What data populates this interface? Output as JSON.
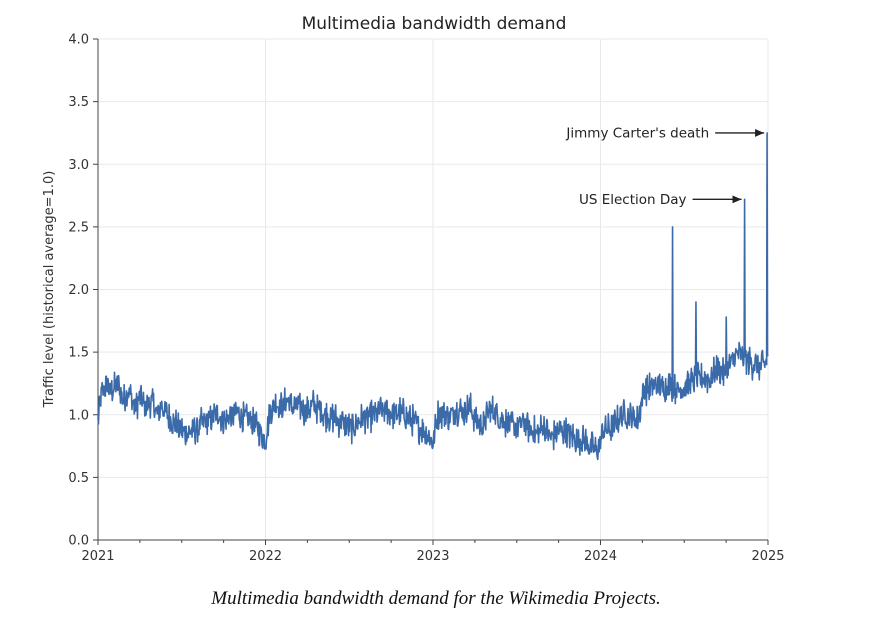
{
  "chart_data": {
    "type": "line",
    "title": "Multimedia bandwidth demand",
    "xlabel": "",
    "ylabel": "Traffic level (historical average=1.0)",
    "xlim": [
      2021,
      2025
    ],
    "ylim": [
      0,
      4
    ],
    "x_ticks": [
      "2021",
      "2022",
      "2023",
      "2024",
      "2025"
    ],
    "y_ticks": [
      "0.0",
      "0.5",
      "1.0",
      "1.5",
      "2.0",
      "2.5",
      "3.0",
      "3.5",
      "4.0"
    ],
    "grid": true,
    "line_color": "#3b6aa8",
    "series": [
      {
        "name": "Multimedia bandwidth demand",
        "points": [
          [
            2021.0,
            0.95
          ],
          [
            2021.02,
            1.15
          ],
          [
            2021.05,
            1.25
          ],
          [
            2021.08,
            1.18
          ],
          [
            2021.12,
            1.25
          ],
          [
            2021.15,
            1.1
          ],
          [
            2021.18,
            1.2
          ],
          [
            2021.22,
            1.05
          ],
          [
            2021.25,
            1.15
          ],
          [
            2021.28,
            1.05
          ],
          [
            2021.32,
            1.12
          ],
          [
            2021.35,
            1.0
          ],
          [
            2021.38,
            1.08
          ],
          [
            2021.42,
            0.98
          ],
          [
            2021.45,
            0.95
          ],
          [
            2021.48,
            0.9
          ],
          [
            2021.5,
            0.88
          ],
          [
            2021.53,
            0.85
          ],
          [
            2021.56,
            0.87
          ],
          [
            2021.6,
            0.9
          ],
          [
            2021.64,
            0.95
          ],
          [
            2021.68,
            0.98
          ],
          [
            2021.72,
            1.0
          ],
          [
            2021.76,
            0.95
          ],
          [
            2021.8,
            1.0
          ],
          [
            2021.84,
            1.02
          ],
          [
            2021.88,
            0.97
          ],
          [
            2021.92,
            0.95
          ],
          [
            2021.96,
            0.88
          ],
          [
            2022.0,
            0.8
          ],
          [
            2022.03,
            1.05
          ],
          [
            2022.06,
            1.1
          ],
          [
            2022.1,
            1.05
          ],
          [
            2022.13,
            1.12
          ],
          [
            2022.16,
            1.05
          ],
          [
            2022.2,
            1.08
          ],
          [
            2022.24,
            1.02
          ],
          [
            2022.28,
            1.08
          ],
          [
            2022.32,
            1.05
          ],
          [
            2022.36,
            1.0
          ],
          [
            2022.4,
            0.98
          ],
          [
            2022.44,
            0.95
          ],
          [
            2022.48,
            0.92
          ],
          [
            2022.52,
            0.9
          ],
          [
            2022.56,
            0.95
          ],
          [
            2022.6,
            0.98
          ],
          [
            2022.64,
            1.0
          ],
          [
            2022.68,
            1.02
          ],
          [
            2022.72,
            1.05
          ],
          [
            2022.76,
            1.0
          ],
          [
            2022.8,
            1.02
          ],
          [
            2022.84,
            0.98
          ],
          [
            2022.88,
            0.95
          ],
          [
            2022.92,
            0.9
          ],
          [
            2022.96,
            0.85
          ],
          [
            2023.0,
            0.78
          ],
          [
            2023.03,
            1.0
          ],
          [
            2023.06,
            1.02
          ],
          [
            2023.1,
            0.98
          ],
          [
            2023.14,
            1.05
          ],
          [
            2023.18,
            1.02
          ],
          [
            2023.22,
            1.06
          ],
          [
            2023.26,
            0.95
          ],
          [
            2023.3,
            0.9
          ],
          [
            2023.34,
            1.05
          ],
          [
            2023.38,
            1.0
          ],
          [
            2023.42,
            0.95
          ],
          [
            2023.46,
            0.92
          ],
          [
            2023.5,
            0.9
          ],
          [
            2023.54,
            0.95
          ],
          [
            2023.58,
            0.88
          ],
          [
            2023.62,
            0.85
          ],
          [
            2023.66,
            0.9
          ],
          [
            2023.7,
            0.82
          ],
          [
            2023.74,
            0.86
          ],
          [
            2023.78,
            0.88
          ],
          [
            2023.82,
            0.84
          ],
          [
            2023.86,
            0.8
          ],
          [
            2023.9,
            0.8
          ],
          [
            2023.94,
            0.75
          ],
          [
            2023.98,
            0.7
          ],
          [
            2024.02,
            0.88
          ],
          [
            2024.06,
            0.88
          ],
          [
            2024.1,
            0.95
          ],
          [
            2024.14,
            1.0
          ],
          [
            2024.18,
            0.98
          ],
          [
            2024.22,
            0.95
          ],
          [
            2024.26,
            1.2
          ],
          [
            2024.3,
            1.22
          ],
          [
            2024.34,
            1.25
          ],
          [
            2024.38,
            1.2
          ],
          [
            2024.42,
            1.25
          ],
          [
            2024.46,
            1.2
          ],
          [
            2024.5,
            1.22
          ],
          [
            2024.54,
            1.25
          ],
          [
            2024.58,
            1.28
          ],
          [
            2024.62,
            1.3
          ],
          [
            2024.66,
            1.28
          ],
          [
            2024.7,
            1.38
          ],
          [
            2024.74,
            1.32
          ],
          [
            2024.78,
            1.42
          ],
          [
            2024.82,
            1.48
          ],
          [
            2024.86,
            1.45
          ],
          [
            2024.9,
            1.42
          ],
          [
            2024.94,
            1.38
          ],
          [
            2024.98,
            1.4
          ],
          [
            2025.0,
            1.45
          ]
        ]
      }
    ],
    "spikes": [
      [
        2024.43,
        2.5
      ],
      [
        2024.57,
        1.9
      ],
      [
        2024.75,
        1.78
      ],
      [
        2024.86,
        2.72
      ],
      [
        2024.995,
        3.25
      ]
    ],
    "annotations": [
      {
        "text": "Jimmy Carter's death",
        "x": 2024.995,
        "y": 3.25
      },
      {
        "text": "US Election Day",
        "x": 2024.86,
        "y": 2.72
      }
    ]
  },
  "caption": "Multimedia bandwidth demand for the Wikimedia Projects."
}
